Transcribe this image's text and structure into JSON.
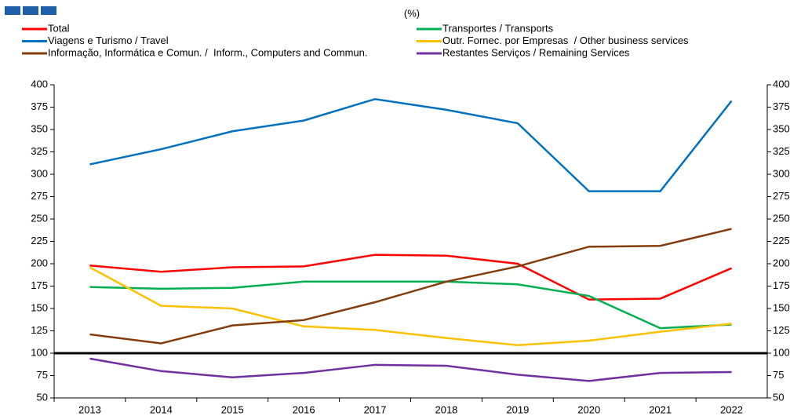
{
  "chart_data": {
    "type": "line",
    "subtitle": "(%)",
    "categories": [
      "2013",
      "2014",
      "2015",
      "2016",
      "2017",
      "2018",
      "2019",
      "2020",
      "2021",
      "2022"
    ],
    "series": [
      {
        "name": "Total",
        "color": "#ff0000",
        "values": [
          198,
          191,
          196,
          197,
          210,
          209,
          200,
          160,
          161,
          195
        ]
      },
      {
        "name": "Transportes / Transports",
        "color": "#00b050",
        "values": [
          174,
          172,
          173,
          180,
          180,
          180,
          177,
          164,
          128,
          132
        ]
      },
      {
        "name": "Viagens e Turismo / Travel",
        "color": "#0070c0",
        "values": [
          311,
          328,
          348,
          360,
          384,
          372,
          357,
          281,
          281,
          382
        ]
      },
      {
        "name": "Outr. Fornec. por Empresas  / Other business services",
        "color": "#ffc000",
        "values": [
          196,
          153,
          150,
          130,
          126,
          117,
          109,
          114,
          124,
          133
        ]
      },
      {
        "name": "Informação, Informática e Comun. /  Inform., Computers and Commun.",
        "color": "#843c0c",
        "values": [
          121,
          111,
          131,
          137,
          157,
          180,
          197,
          219,
          220,
          239
        ]
      },
      {
        "name": "Restantes Serviços / Remaining Services",
        "color": "#7030a0",
        "values": [
          94,
          80,
          73,
          78,
          87,
          86,
          76,
          69,
          78,
          79
        ]
      }
    ],
    "reference_line": {
      "value": 100,
      "color": "#000000"
    },
    "ylim": [
      50,
      400
    ],
    "yticks": [
      50,
      75,
      100,
      125,
      150,
      175,
      200,
      225,
      250,
      275,
      300,
      325,
      350,
      375,
      400
    ],
    "y2lim": [
      50,
      400
    ],
    "y2ticks": [
      50,
      75,
      100,
      125,
      150,
      175,
      200,
      225,
      250,
      275,
      300,
      325,
      350,
      375,
      400
    ],
    "grid": false
  }
}
